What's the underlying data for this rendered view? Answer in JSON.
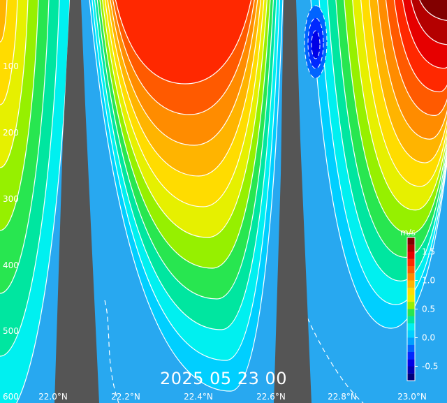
{
  "timestamp": "2025 05 23 00",
  "chart_data": {
    "type": "heatmap",
    "title": "",
    "x_ticks": [
      "22.0°N",
      "22.2°N",
      "22.4°N",
      "22.6°N",
      "22.8°N",
      "23.0°N"
    ],
    "y_ticks": [
      "100",
      "200",
      "300",
      "400",
      "500",
      "600"
    ],
    "y_inverted": true,
    "colorbar": {
      "unit": "m/s",
      "tick_labels": [
        "1.5",
        "1.0",
        "0.5",
        "0.0",
        "-0.5"
      ],
      "range": [
        -0.75,
        1.75
      ],
      "levels": [
        {
          "value": -0.75,
          "color": "#00007a"
        },
        {
          "value": -0.625,
          "color": "#0000b4"
        },
        {
          "value": -0.5,
          "color": "#0000e6"
        },
        {
          "value": -0.375,
          "color": "#0028ff"
        },
        {
          "value": -0.25,
          "color": "#0064ff"
        },
        {
          "value": -0.125,
          "color": "#00a0ff"
        },
        {
          "value": 0.0,
          "color": "#00cfff"
        },
        {
          "value": 0.125,
          "color": "#00f0f0"
        },
        {
          "value": 0.25,
          "color": "#00e6a0"
        },
        {
          "value": 0.375,
          "color": "#28e650"
        },
        {
          "value": 0.5,
          "color": "#96f000"
        },
        {
          "value": 0.625,
          "color": "#e6f000"
        },
        {
          "value": 0.75,
          "color": "#ffdc00"
        },
        {
          "value": 0.875,
          "color": "#ffb400"
        },
        {
          "value": 1.0,
          "color": "#ff8c00"
        },
        {
          "value": 1.125,
          "color": "#ff5a00"
        },
        {
          "value": 1.25,
          "color": "#ff2800"
        },
        {
          "value": 1.375,
          "color": "#e60000"
        },
        {
          "value": 1.5,
          "color": "#b40000"
        },
        {
          "value": 1.625,
          "color": "#820000"
        }
      ]
    },
    "contour_lines": {
      "positive": "solid white",
      "negative": "dashed white"
    },
    "terrain_color": "#555555",
    "background_color": "#28a8f0"
  }
}
